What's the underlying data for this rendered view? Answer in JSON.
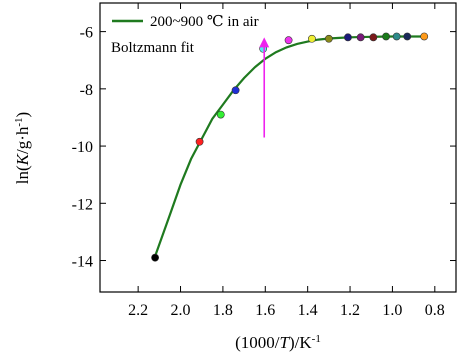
{
  "chart_data": {
    "type": "scatter",
    "xlabel": "(1000/T)/K⁻¹",
    "xlabel_parts": {
      "prefix": "(1000/",
      "var": "T",
      "suffix": ")/K",
      "sup": "-1"
    },
    "ylabel": "ln(K/g·h⁻¹)",
    "ylabel_parts": {
      "prefix": "ln(",
      "var": "K",
      "mid": "/g·h",
      "sup": "-1",
      "suffix": ")"
    },
    "xlim": [
      2.38,
      0.7
    ],
    "ylim": [
      -15.1,
      -5.0
    ],
    "x_reversed": true,
    "x_ticks": [
      2.2,
      2.0,
      1.8,
      1.6,
      1.4,
      1.2,
      1.0,
      0.8
    ],
    "x_tick_labels": [
      "2.2",
      "2.0",
      "1.8",
      "1.6",
      "1.4",
      "1.2",
      "1.0",
      "0.8"
    ],
    "y_ticks": [
      -14,
      -12,
      -10,
      -8,
      -6
    ],
    "y_tick_labels": [
      "-14",
      "-12",
      "-10",
      "-8",
      "-6"
    ],
    "legend": {
      "position": "top-left",
      "line_label": "200~900 ℃ in air",
      "fit_label": "Boltzmann fit",
      "fit_label_color": "#2ea02e"
    },
    "fit_curve": {
      "name": "Boltzmann fit",
      "color": "#1f7a1f",
      "x": [
        2.12,
        2.05,
        2.0,
        1.95,
        1.9,
        1.85,
        1.8,
        1.75,
        1.7,
        1.65,
        1.6,
        1.55,
        1.5,
        1.45,
        1.4,
        1.35,
        1.3,
        1.25,
        1.2,
        1.1,
        1.0,
        0.9,
        0.85
      ],
      "y": [
        -13.85,
        -12.4,
        -11.35,
        -10.45,
        -9.75,
        -9.05,
        -8.55,
        -8.05,
        -7.62,
        -7.25,
        -6.95,
        -6.72,
        -6.55,
        -6.43,
        -6.35,
        -6.28,
        -6.24,
        -6.22,
        -6.2,
        -6.18,
        -6.17,
        -6.17,
        -6.17
      ]
    },
    "points": [
      {
        "x": 2.12,
        "y": -13.9,
        "color": "#000000"
      },
      {
        "x": 1.91,
        "y": -9.85,
        "color": "#ff2020"
      },
      {
        "x": 1.81,
        "y": -8.9,
        "color": "#33ee33"
      },
      {
        "x": 1.74,
        "y": -8.05,
        "color": "#1f2fd6"
      },
      {
        "x": 1.61,
        "y": -6.6,
        "color": "#55eeee"
      },
      {
        "x": 1.49,
        "y": -6.3,
        "color": "#ee33ee"
      },
      {
        "x": 1.38,
        "y": -6.25,
        "color": "#eeee33"
      },
      {
        "x": 1.3,
        "y": -6.25,
        "color": "#8a8a1a"
      },
      {
        "x": 1.21,
        "y": -6.2,
        "color": "#1a1a7a"
      },
      {
        "x": 1.15,
        "y": -6.2,
        "color": "#7a1a7a"
      },
      {
        "x": 1.09,
        "y": -6.2,
        "color": "#7a1a1a"
      },
      {
        "x": 1.03,
        "y": -6.17,
        "color": "#1a7a1a"
      },
      {
        "x": 0.98,
        "y": -6.17,
        "color": "#2e8b8b"
      },
      {
        "x": 0.93,
        "y": -6.17,
        "color": "#1a2a5a"
      },
      {
        "x": 0.85,
        "y": -6.17,
        "color": "#ff9a1a"
      }
    ],
    "arrow": {
      "x": 1.605,
      "y_from": -9.7,
      "y_to": -6.2,
      "color": "#ee22ee"
    }
  }
}
